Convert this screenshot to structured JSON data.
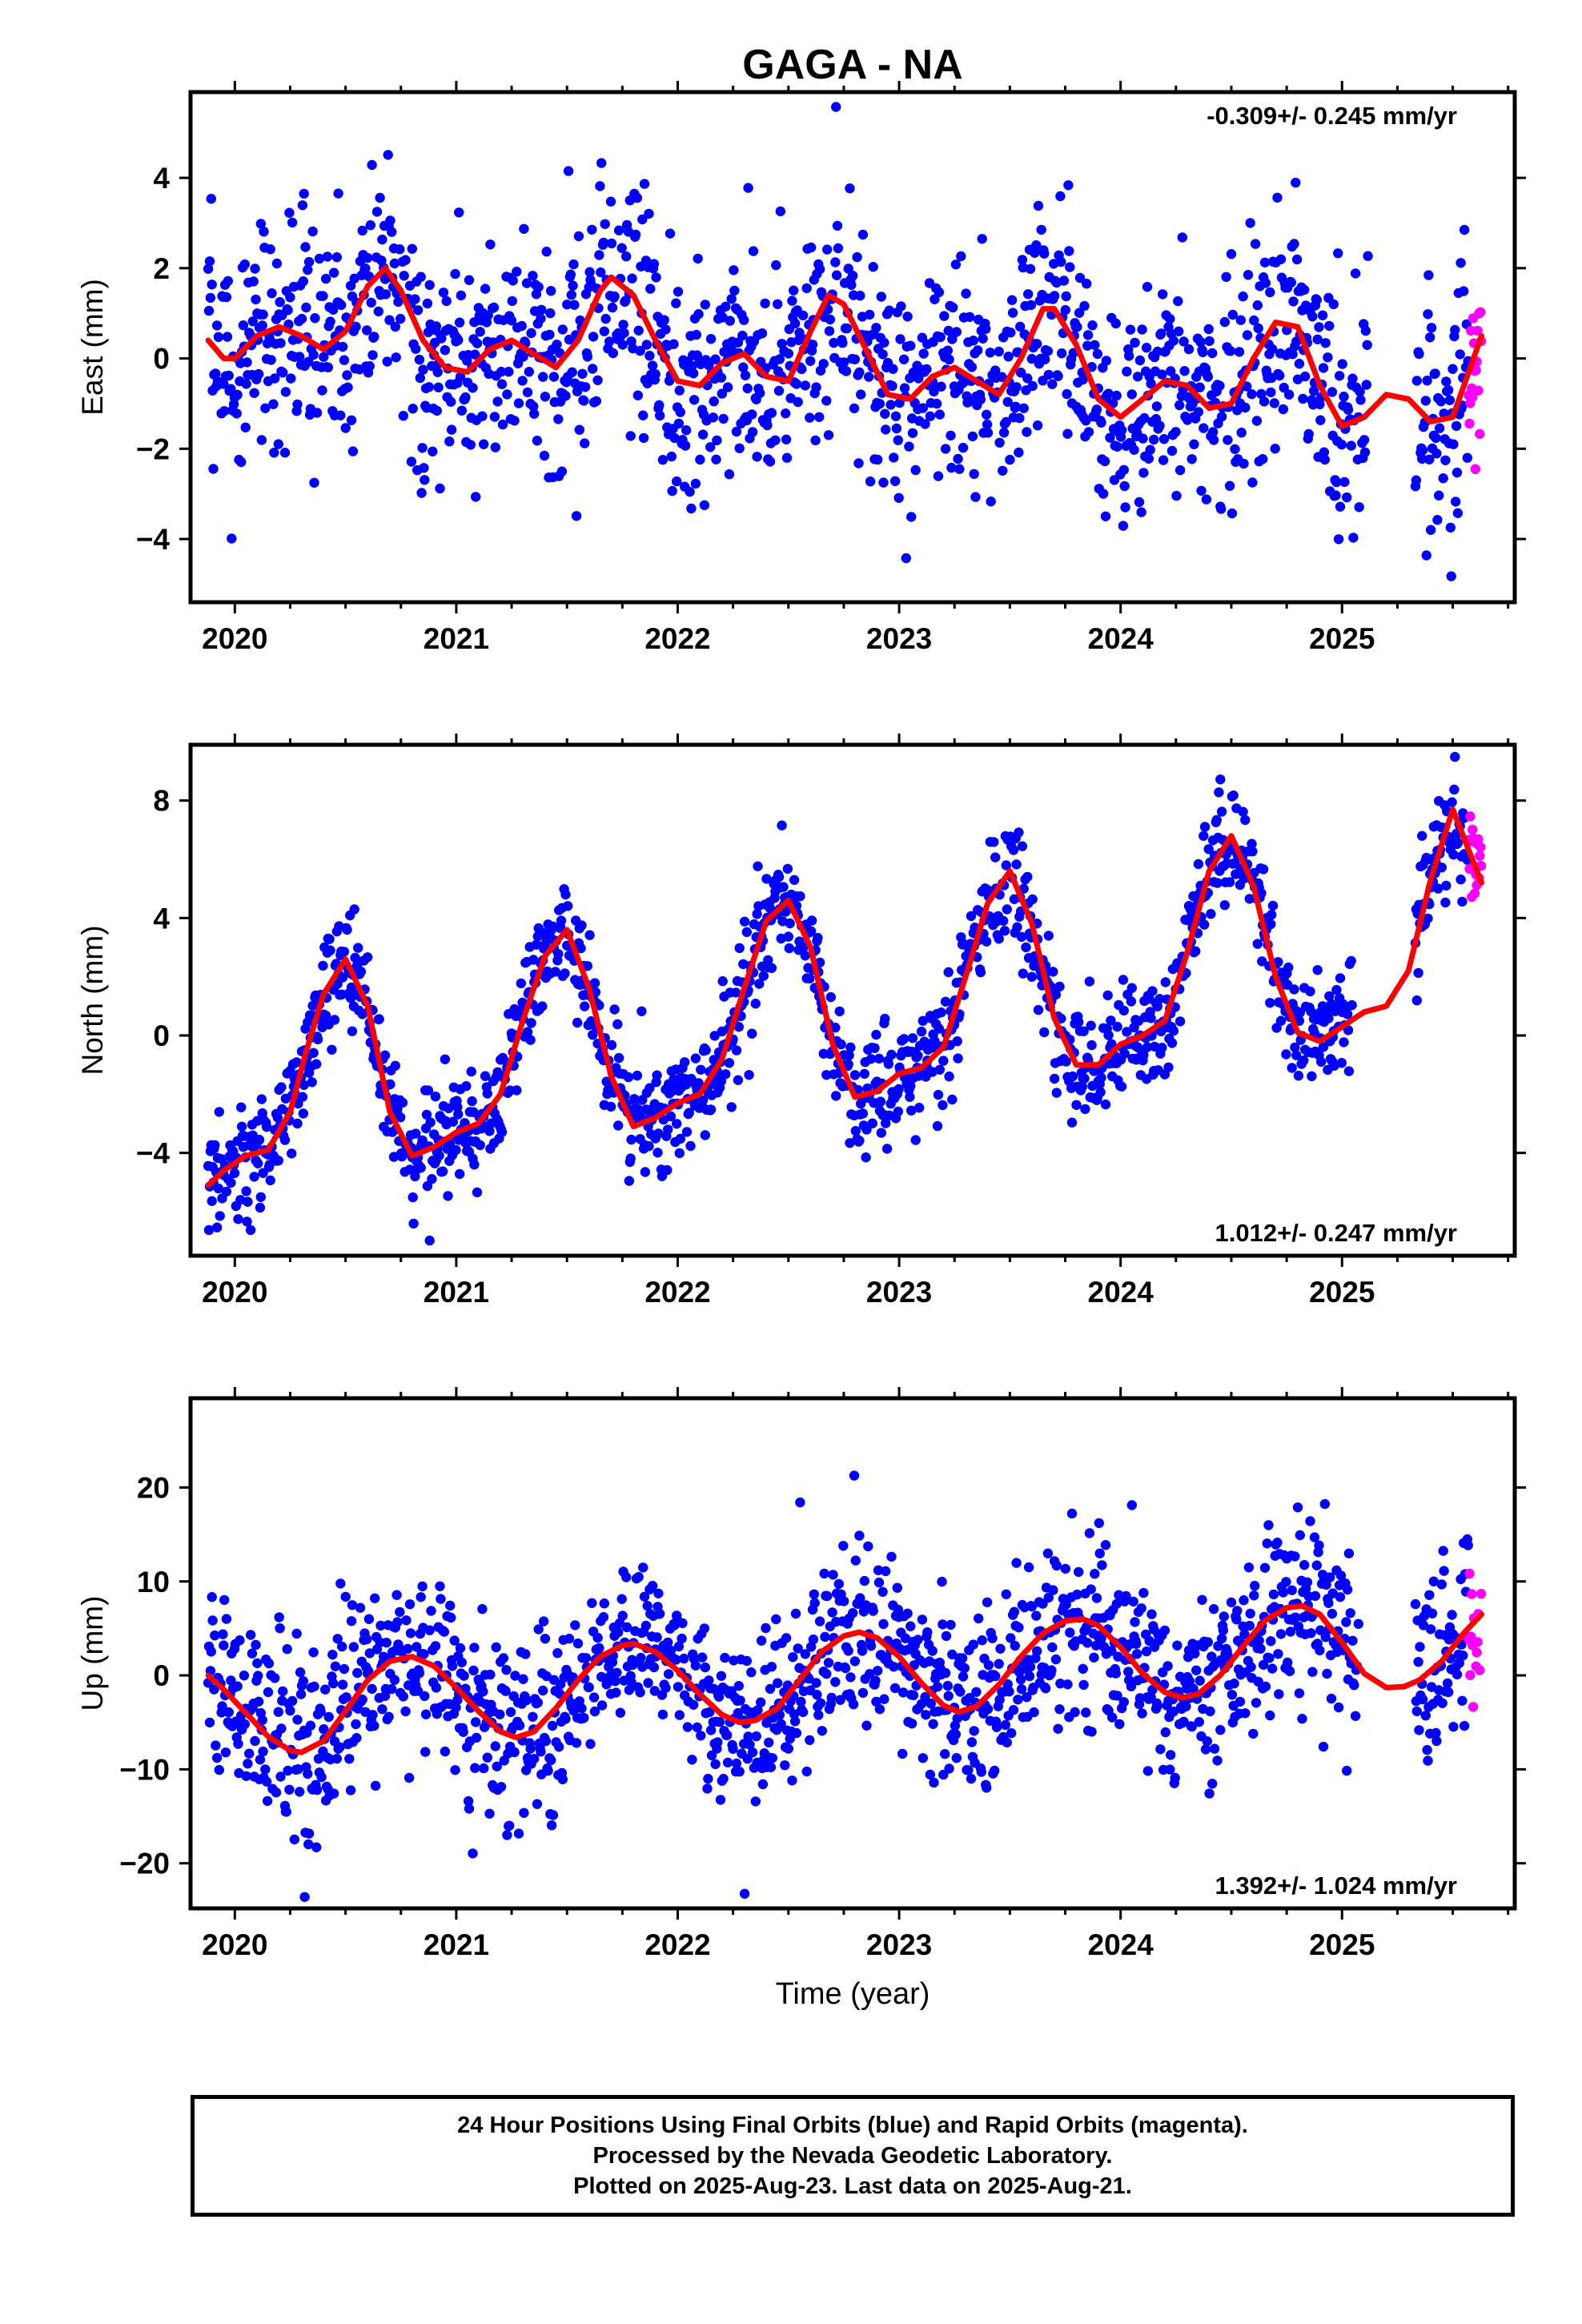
{
  "title": "GAGA - NA",
  "x_axis_label": "Time (year)",
  "footer": {
    "line1": "24 Hour Positions Using Final Orbits (blue) and Rapid Orbits (magenta).",
    "line2": "Processed by the Nevada Geodetic Laboratory.",
    "line3": "Plotted on 2025-Aug-23. Last data on 2025-Aug-21."
  },
  "colors": {
    "final_orbits": "#0000ff",
    "rapid_orbits": "#ff00ff",
    "model_fit": "#ff0000",
    "frame": "#000000"
  },
  "chart_data": [
    {
      "type": "scatter",
      "component": "east",
      "ylabel": "East (mm)",
      "xlim": [
        2019.8,
        2025.78
      ],
      "ylim": [
        -5.4,
        5.9
      ],
      "xticks": [
        2020,
        2021,
        2022,
        2023,
        2024,
        2025
      ],
      "yticks": [
        -4,
        -2,
        0,
        2,
        4
      ],
      "rate_annotation": "-0.309+/- 0.245 mm/yr",
      "annotation_position": "top-right",
      "data_start": 2019.88,
      "data_end": 2025.63,
      "gap": [
        2025.12,
        2025.33
      ],
      "rapid_start": 2025.57,
      "fit_curve": {
        "x": [
          2019.88,
          2019.95,
          2020.0,
          2020.1,
          2020.2,
          2020.3,
          2020.4,
          2020.5,
          2020.6,
          2020.68,
          2020.75,
          2020.85,
          2020.95,
          2021.05,
          2021.15,
          2021.25,
          2021.35,
          2021.45,
          2021.55,
          2021.65,
          2021.7,
          2021.8,
          2021.9,
          2022.0,
          2022.1,
          2022.2,
          2022.3,
          2022.4,
          2022.5,
          2022.6,
          2022.68,
          2022.75,
          2022.85,
          2022.95,
          2023.05,
          2023.15,
          2023.25,
          2023.35,
          2023.45,
          2023.55,
          2023.65,
          2023.7,
          2023.8,
          2023.9,
          2024.0,
          2024.1,
          2024.2,
          2024.3,
          2024.4,
          2024.5,
          2024.6,
          2024.7,
          2024.8,
          2024.9,
          2025.0,
          2025.1,
          2025.2,
          2025.3,
          2025.4,
          2025.5,
          2025.63
        ],
        "y": [
          0.4,
          0.0,
          0.0,
          0.5,
          0.7,
          0.5,
          0.2,
          0.6,
          1.6,
          2.0,
          1.5,
          0.4,
          -0.2,
          -0.3,
          0.2,
          0.4,
          0.1,
          -0.2,
          0.4,
          1.5,
          1.8,
          1.4,
          0.4,
          -0.5,
          -0.6,
          -0.1,
          0.1,
          -0.4,
          -0.5,
          0.6,
          1.4,
          1.2,
          0.2,
          -0.8,
          -0.9,
          -0.4,
          -0.2,
          -0.5,
          -0.8,
          0.0,
          1.1,
          1.1,
          0.3,
          -0.9,
          -1.3,
          -0.9,
          -0.5,
          -0.6,
          -1.1,
          -1.0,
          0.0,
          0.8,
          0.7,
          -0.6,
          -1.5,
          -1.3,
          -0.8,
          -0.9,
          -1.4,
          -1.3,
          0.5
        ]
      }
    },
    {
      "type": "scatter",
      "component": "north",
      "ylabel": "North (mm)",
      "xlim": [
        2019.8,
        2025.78
      ],
      "ylim": [
        -7.5,
        9.9
      ],
      "xticks": [
        2020,
        2021,
        2022,
        2023,
        2024,
        2025
      ],
      "yticks": [
        -4,
        0,
        4,
        8
      ],
      "rate_annotation": "1.012+/- 0.247 mm/yr",
      "annotation_position": "bottom-right",
      "data_start": 2019.88,
      "data_end": 2025.63,
      "gap": [
        2025.05,
        2025.33
      ],
      "rapid_start": 2025.57,
      "fit_curve": {
        "x": [
          2019.88,
          2019.95,
          2020.05,
          2020.15,
          2020.25,
          2020.32,
          2020.4,
          2020.5,
          2020.6,
          2020.7,
          2020.8,
          2020.9,
          2021.0,
          2021.1,
          2021.2,
          2021.3,
          2021.4,
          2021.5,
          2021.6,
          2021.7,
          2021.8,
          2021.9,
          2022.0,
          2022.1,
          2022.2,
          2022.3,
          2022.4,
          2022.5,
          2022.6,
          2022.7,
          2022.8,
          2022.9,
          2023.0,
          2023.1,
          2023.2,
          2023.3,
          2023.4,
          2023.5,
          2023.6,
          2023.7,
          2023.8,
          2023.9,
          2024.0,
          2024.1,
          2024.2,
          2024.3,
          2024.4,
          2024.5,
          2024.6,
          2024.7,
          2024.8,
          2024.9,
          2025.0,
          2025.1,
          2025.2,
          2025.3,
          2025.4,
          2025.5,
          2025.63
        ],
        "y": [
          -5.1,
          -4.6,
          -4.1,
          -3.9,
          -2.6,
          -0.6,
          1.4,
          2.6,
          1.0,
          -2.6,
          -4.1,
          -3.8,
          -3.3,
          -3.0,
          -2.0,
          0.5,
          2.7,
          3.6,
          1.6,
          -1.4,
          -3.1,
          -2.8,
          -2.3,
          -2.0,
          -0.8,
          1.6,
          3.9,
          4.6,
          3.0,
          -0.3,
          -2.1,
          -1.9,
          -1.3,
          -1.1,
          -0.4,
          2.0,
          4.5,
          5.6,
          3.8,
          0.6,
          -1.0,
          -1.0,
          -0.3,
          0.0,
          0.5,
          2.8,
          5.6,
          6.8,
          5.1,
          2.0,
          0.1,
          -0.2,
          0.3,
          0.8,
          1.0,
          2.2,
          5.3,
          7.7,
          5.2
        ]
      }
    },
    {
      "type": "scatter",
      "component": "up",
      "ylabel": "Up (mm)",
      "xlim": [
        2019.8,
        2025.78
      ],
      "ylim": [
        -24.8,
        29.5
      ],
      "xticks": [
        2020,
        2021,
        2022,
        2023,
        2024,
        2025
      ],
      "yticks": [
        -20,
        -10,
        0,
        10,
        20
      ],
      "rate_annotation": "1.392+/- 1.024 mm/yr",
      "annotation_position": "bottom-right",
      "data_start": 2019.88,
      "data_end": 2025.63,
      "gap": [
        2025.08,
        2025.33
      ],
      "rapid_start": 2025.57,
      "fit_curve": {
        "x": [
          2019.88,
          2019.95,
          2020.05,
          2020.15,
          2020.25,
          2020.3,
          2020.4,
          2020.5,
          2020.6,
          2020.7,
          2020.8,
          2020.9,
          2021.0,
          2021.1,
          2021.2,
          2021.27,
          2021.35,
          2021.45,
          2021.55,
          2021.65,
          2021.75,
          2021.8,
          2021.9,
          2022.0,
          2022.1,
          2022.2,
          2022.28,
          2022.35,
          2022.45,
          2022.55,
          2022.65,
          2022.75,
          2022.82,
          2022.9,
          2023.0,
          2023.1,
          2023.2,
          2023.27,
          2023.35,
          2023.45,
          2023.55,
          2023.65,
          2023.75,
          2023.83,
          2023.9,
          2024.0,
          2024.1,
          2024.2,
          2024.28,
          2024.35,
          2024.45,
          2024.55,
          2024.65,
          2024.75,
          2024.82,
          2024.9,
          2025.0,
          2025.1,
          2025.2,
          2025.28,
          2025.35,
          2025.45,
          2025.55,
          2025.63
        ],
        "y": [
          0.0,
          -1.5,
          -4.0,
          -6.5,
          -8.0,
          -8.2,
          -7.0,
          -3.8,
          -0.5,
          1.5,
          2.0,
          1.0,
          -1.3,
          -3.8,
          -6.0,
          -6.6,
          -6.0,
          -3.5,
          -0.5,
          2.0,
          3.2,
          3.4,
          2.5,
          0.5,
          -2.0,
          -4.2,
          -5.0,
          -4.8,
          -3.5,
          -0.5,
          2.5,
          4.2,
          4.6,
          4.0,
          2.0,
          -0.8,
          -3.2,
          -3.9,
          -3.3,
          -1.0,
          2.0,
          4.5,
          5.8,
          6.0,
          5.3,
          3.0,
          0.2,
          -1.8,
          -2.4,
          -2.0,
          0.0,
          3.0,
          5.8,
          7.2,
          7.4,
          6.5,
          3.5,
          0.2,
          -1.3,
          -1.2,
          -0.5,
          1.5,
          4.5,
          6.5
        ]
      }
    }
  ]
}
